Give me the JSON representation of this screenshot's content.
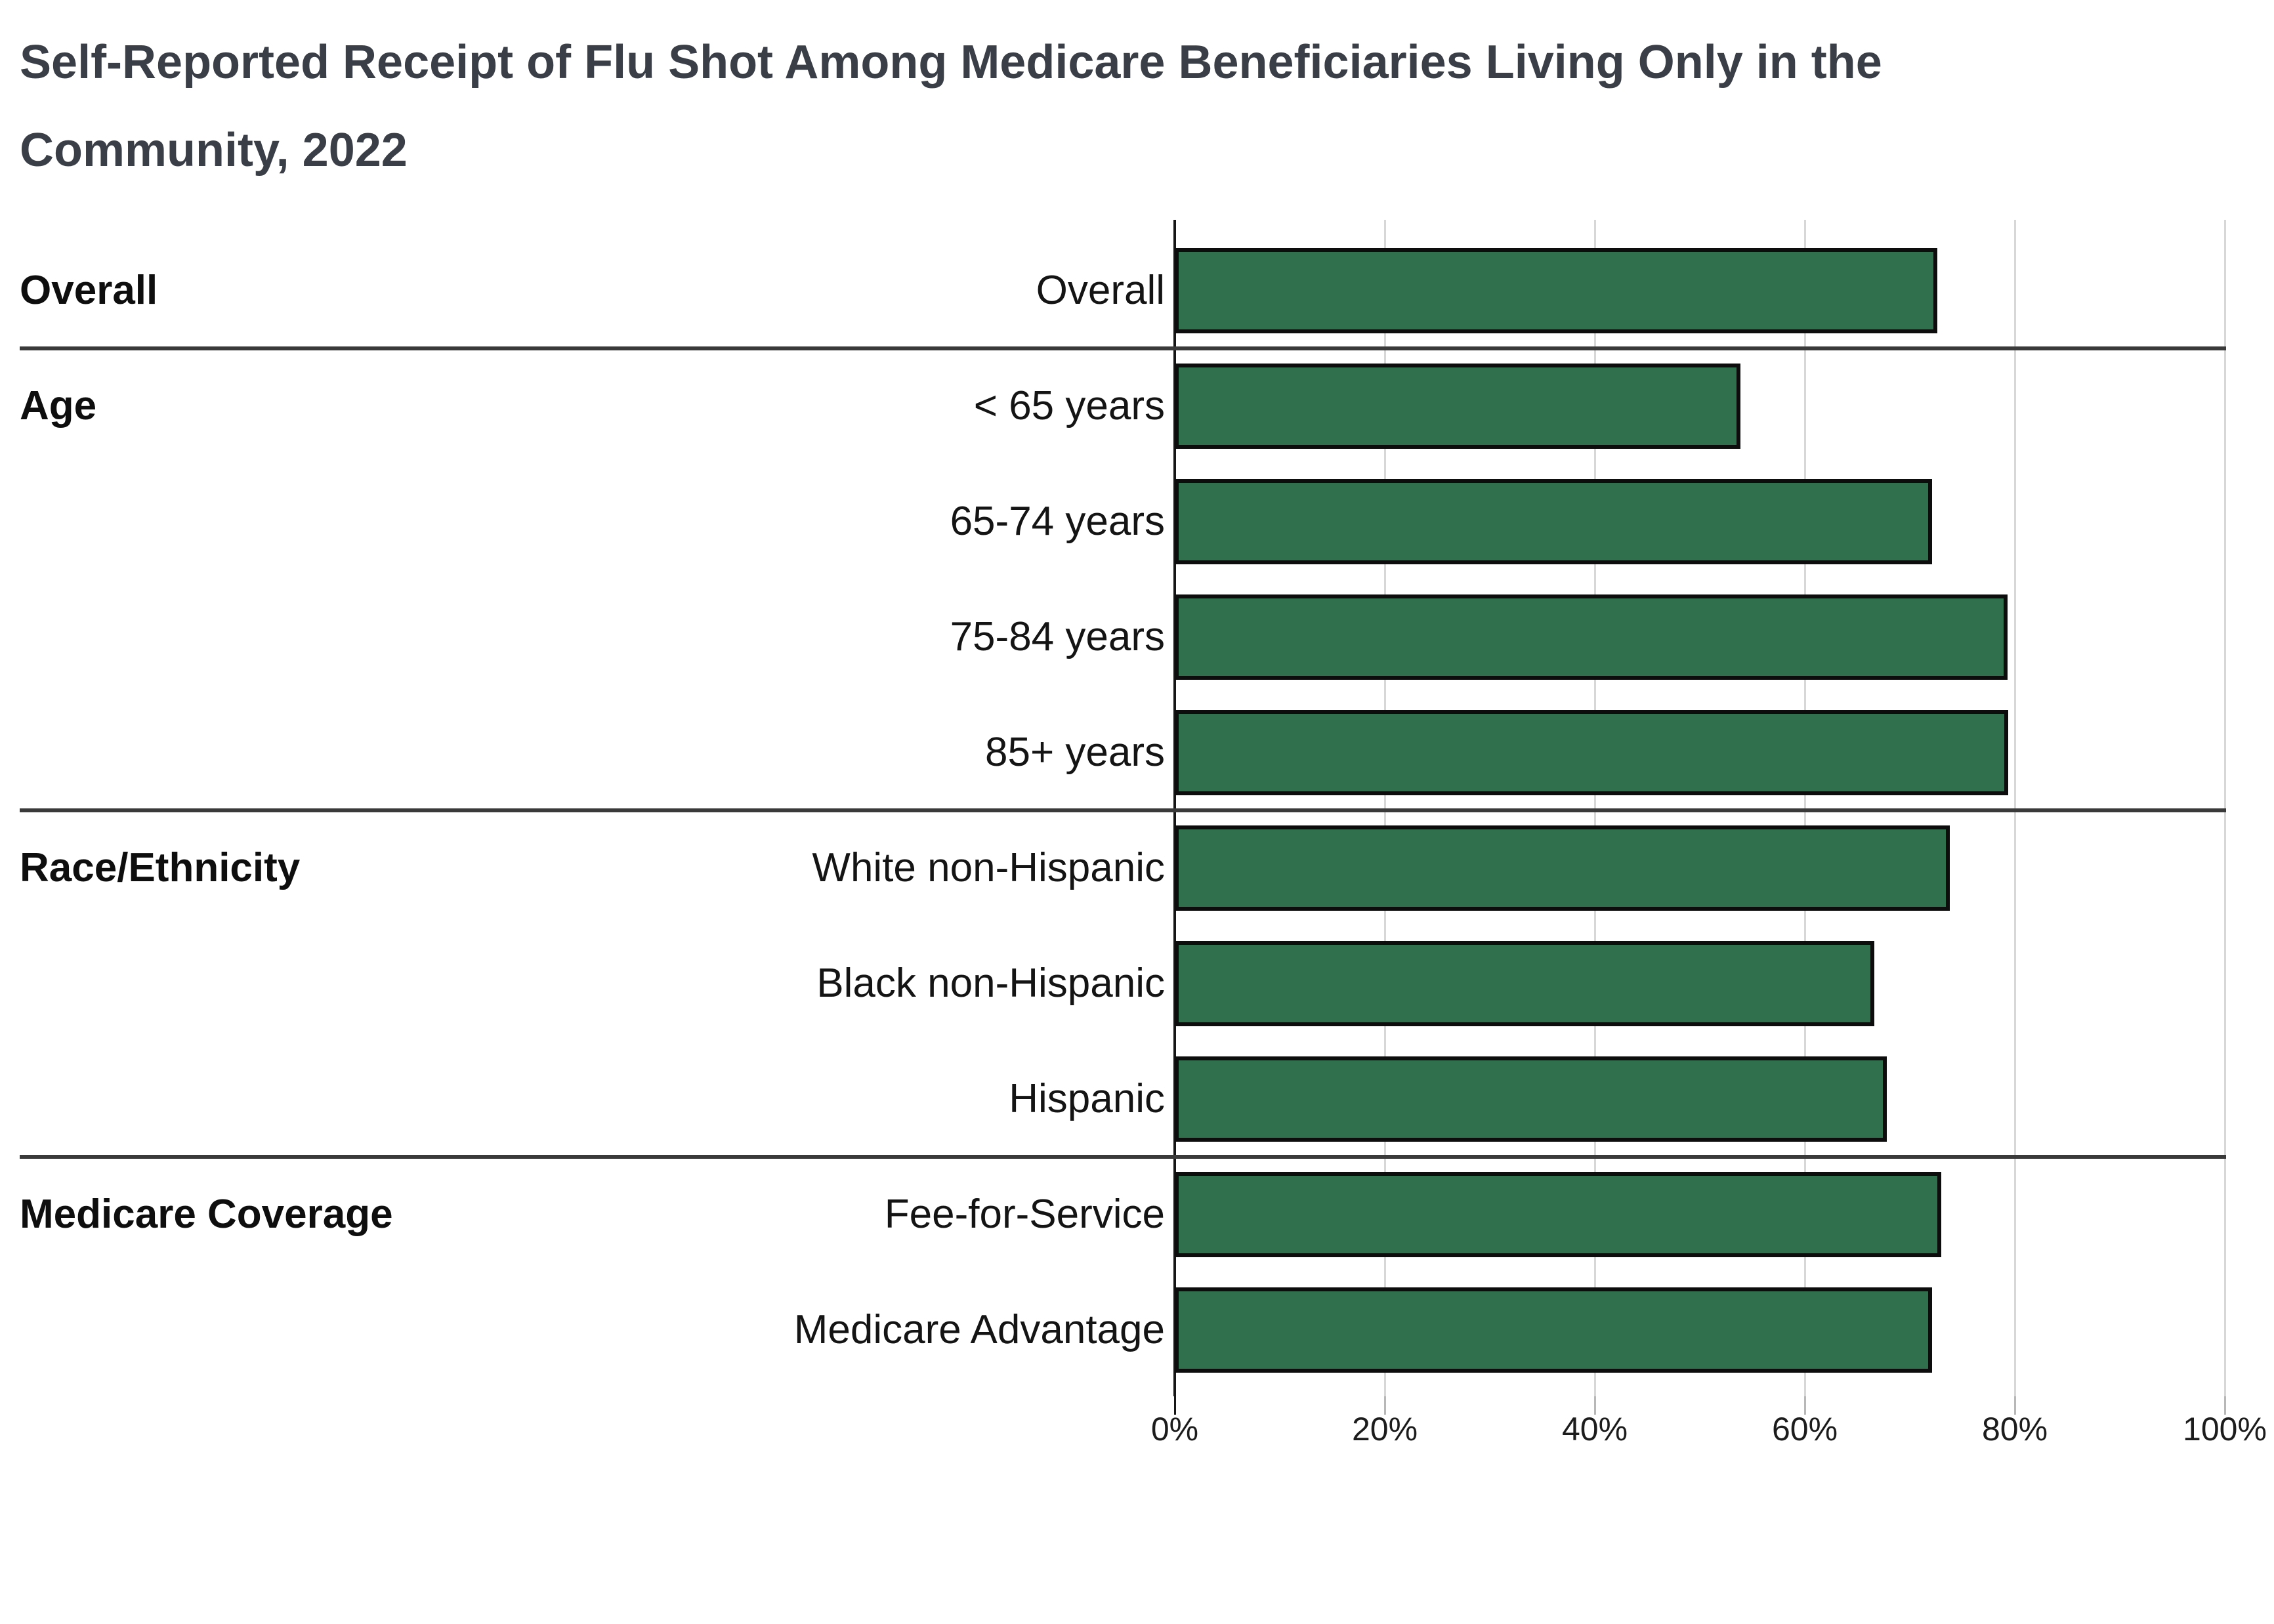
{
  "header": {
    "title_lines": [
      "Self-Reported Receipt of Flu Shot Among Medicare Beneficiaries Living Only in the",
      "Community, 2022"
    ]
  },
  "chart_data": {
    "type": "bar",
    "orientation": "horizontal",
    "title": "Self-Reported Receipt of Flu Shot Among Medicare Beneficiaries Living Only in the Community, 2022",
    "xlabel": "",
    "ylabel": "",
    "xlim": [
      0,
      100
    ],
    "grid": true,
    "legend": false,
    "value_unit": "%",
    "bar_color": "#31704C",
    "bar_border_color": "#0d0d0d",
    "gridline_color": "#d7d7d7",
    "x_ticks": [
      "0%",
      "20%",
      "40%",
      "60%",
      "80%",
      "100%"
    ],
    "x_tick_values": [
      0,
      20,
      40,
      60,
      80,
      100
    ],
    "groups": [
      {
        "label": "Overall",
        "rows": [
          {
            "label": "Overall",
            "value": 72.6
          }
        ]
      },
      {
        "label": "Age",
        "rows": [
          {
            "label": "< 65 years",
            "value": 53.9
          },
          {
            "label": "65-74 years",
            "value": 72.1
          },
          {
            "label": "75-84 years",
            "value": 79.3
          },
          {
            "label": "85+ years",
            "value": 79.4
          }
        ]
      },
      {
        "label": "Race/Ethnicity",
        "rows": [
          {
            "label": "White non-Hispanic",
            "value": 73.8
          },
          {
            "label": "Black non-Hispanic",
            "value": 66.6
          },
          {
            "label": "Hispanic",
            "value": 67.8
          }
        ]
      },
      {
        "label": "Medicare Coverage",
        "rows": [
          {
            "label": "Fee-for-Service",
            "value": 73.0
          },
          {
            "label": "Medicare Advantage",
            "value": 72.1
          }
        ]
      }
    ]
  }
}
